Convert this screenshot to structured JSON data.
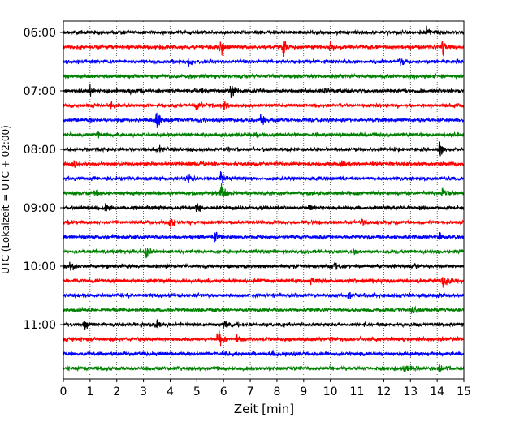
{
  "chart_data": {
    "type": "line",
    "title": "",
    "xlabel": "Zeit  [min]",
    "ylabel": "UTC (Lokalzeit = UTC + 02:00)",
    "xlim": [
      0,
      15
    ],
    "x_ticks": [
      "0",
      "1",
      "2",
      "3",
      "4",
      "5",
      "6",
      "7",
      "8",
      "9",
      "10",
      "11",
      "12",
      "13",
      "14",
      "15"
    ],
    "y_ticks": [
      {
        "label": "06:00",
        "row": 0
      },
      {
        "label": "07:00",
        "row": 4
      },
      {
        "label": "08:00",
        "row": 8
      },
      {
        "label": "09:00",
        "row": 12
      },
      {
        "label": "10:00",
        "row": 16
      },
      {
        "label": "11:00",
        "row": 20
      }
    ],
    "grid": "vertical dotted at each minute",
    "legend": "none",
    "color_cycle": [
      "#000000",
      "#ff0000",
      "#0000ff",
      "#008000"
    ],
    "rows": [
      {
        "start": "06:00",
        "color": "#000000",
        "events": [
          {
            "t": 13.6,
            "a": 0.5
          }
        ]
      },
      {
        "start": "06:15",
        "color": "#ff0000",
        "events": [
          {
            "t": 5.9,
            "a": 0.9
          },
          {
            "t": 8.25,
            "a": 1.0
          },
          {
            "t": 10.0,
            "a": 0.4
          },
          {
            "t": 14.2,
            "a": 0.8
          }
        ]
      },
      {
        "start": "06:30",
        "color": "#0000ff",
        "events": [
          {
            "t": 4.7,
            "a": 0.6
          },
          {
            "t": 12.6,
            "a": 0.4
          }
        ]
      },
      {
        "start": "06:45",
        "color": "#008000",
        "events": []
      },
      {
        "start": "07:00",
        "color": "#000000",
        "events": [
          {
            "t": 1.0,
            "a": 0.4
          },
          {
            "t": 2.5,
            "a": 0.5
          },
          {
            "t": 6.3,
            "a": 1.0
          },
          {
            "t": 9.8,
            "a": 0.3
          }
        ]
      },
      {
        "start": "07:15",
        "color": "#ff0000",
        "events": [
          {
            "t": 1.8,
            "a": 0.4
          },
          {
            "t": 5.0,
            "a": 0.7
          },
          {
            "t": 6.0,
            "a": 0.4
          }
        ]
      },
      {
        "start": "07:30",
        "color": "#0000ff",
        "events": [
          {
            "t": 3.5,
            "a": 1.1
          },
          {
            "t": 7.4,
            "a": 0.6
          }
        ]
      },
      {
        "start": "07:45",
        "color": "#008000",
        "events": [
          {
            "t": 1.3,
            "a": 0.4
          },
          {
            "t": 7.2,
            "a": 0.4
          }
        ]
      },
      {
        "start": "08:00",
        "color": "#000000",
        "events": [
          {
            "t": 3.6,
            "a": 0.5
          },
          {
            "t": 14.1,
            "a": 0.8
          }
        ]
      },
      {
        "start": "08:15",
        "color": "#ff0000",
        "events": [
          {
            "t": 0.4,
            "a": 0.4
          },
          {
            "t": 10.4,
            "a": 0.4
          }
        ]
      },
      {
        "start": "08:30",
        "color": "#0000ff",
        "events": [
          {
            "t": 4.7,
            "a": 0.5
          },
          {
            "t": 5.9,
            "a": 0.6
          }
        ]
      },
      {
        "start": "08:45",
        "color": "#008000",
        "events": [
          {
            "t": 1.2,
            "a": 0.4
          },
          {
            "t": 5.9,
            "a": 1.2
          },
          {
            "t": 14.2,
            "a": 0.9
          }
        ]
      },
      {
        "start": "09:00",
        "color": "#000000",
        "events": [
          {
            "t": 1.6,
            "a": 0.4
          },
          {
            "t": 5.0,
            "a": 0.5
          },
          {
            "t": 9.2,
            "a": 0.3
          }
        ]
      },
      {
        "start": "09:15",
        "color": "#ff0000",
        "events": [
          {
            "t": 4.0,
            "a": 0.6
          },
          {
            "t": 11.2,
            "a": 0.3
          }
        ]
      },
      {
        "start": "09:30",
        "color": "#0000ff",
        "events": [
          {
            "t": 5.7,
            "a": 0.5
          },
          {
            "t": 14.1,
            "a": 0.3
          }
        ]
      },
      {
        "start": "09:45",
        "color": "#008000",
        "events": [
          {
            "t": 3.1,
            "a": 0.7
          },
          {
            "t": 10.9,
            "a": 0.4
          }
        ]
      },
      {
        "start": "10:00",
        "color": "#000000",
        "events": [
          {
            "t": 0.3,
            "a": 0.8
          },
          {
            "t": 10.2,
            "a": 0.5
          },
          {
            "t": 13.1,
            "a": 0.4
          }
        ]
      },
      {
        "start": "10:15",
        "color": "#ff0000",
        "events": [
          {
            "t": 9.3,
            "a": 0.5
          },
          {
            "t": 14.2,
            "a": 1.1
          }
        ]
      },
      {
        "start": "10:30",
        "color": "#0000ff",
        "events": [
          {
            "t": 10.7,
            "a": 0.5
          }
        ]
      },
      {
        "start": "10:45",
        "color": "#008000",
        "events": [
          {
            "t": 13.0,
            "a": 0.6
          }
        ]
      },
      {
        "start": "11:00",
        "color": "#000000",
        "events": [
          {
            "t": 0.8,
            "a": 0.5
          },
          {
            "t": 3.5,
            "a": 0.5
          },
          {
            "t": 6.0,
            "a": 0.5
          }
        ]
      },
      {
        "start": "11:15",
        "color": "#ff0000",
        "events": [
          {
            "t": 5.8,
            "a": 1.0
          },
          {
            "t": 6.5,
            "a": 0.5
          }
        ]
      },
      {
        "start": "11:30",
        "color": "#0000ff",
        "events": [
          {
            "t": 7.8,
            "a": 0.4
          }
        ]
      },
      {
        "start": "11:45",
        "color": "#008000",
        "events": [
          {
            "t": 12.8,
            "a": 0.4
          },
          {
            "t": 14.1,
            "a": 0.4
          }
        ]
      }
    ]
  }
}
